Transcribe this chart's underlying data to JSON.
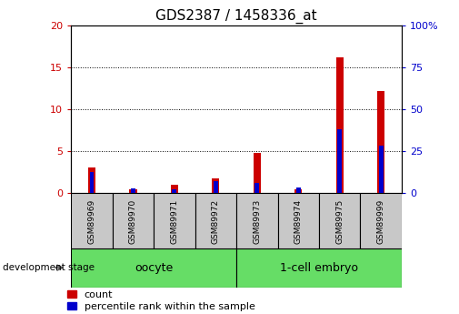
{
  "title": "GDS2387 / 1458336_at",
  "samples": [
    "GSM89969",
    "GSM89970",
    "GSM89971",
    "GSM89972",
    "GSM89973",
    "GSM89974",
    "GSM89975",
    "GSM89999"
  ],
  "count": [
    3.0,
    0.5,
    1.0,
    1.8,
    4.8,
    0.5,
    16.2,
    12.2
  ],
  "percentile": [
    12.5,
    3.0,
    2.0,
    7.0,
    6.0,
    3.5,
    38.0,
    28.0
  ],
  "groups": [
    {
      "label": "oocyte",
      "start": 0,
      "end": 3,
      "color": "#66DD66"
    },
    {
      "label": "1-cell embryo",
      "start": 4,
      "end": 7,
      "color": "#66DD66"
    }
  ],
  "ylim_left": [
    0,
    20
  ],
  "ylim_right": [
    0,
    100
  ],
  "yticks_left": [
    0,
    5,
    10,
    15,
    20
  ],
  "yticks_right": [
    0,
    25,
    50,
    75,
    100
  ],
  "bar_color_count": "#cc0000",
  "bar_color_percentile": "#0000cc",
  "bar_width": 0.18,
  "grid_color": "black",
  "left_tick_color": "#cc0000",
  "right_tick_color": "#0000cc",
  "sample_bg_color": "#c8c8c8",
  "legend_count_label": "count",
  "legend_percentile_label": "percentile rank within the sample",
  "dev_stage_label": "development stage",
  "title_fontsize": 11,
  "axis_fontsize": 8,
  "label_fontsize": 7.5,
  "legend_fontsize": 8
}
